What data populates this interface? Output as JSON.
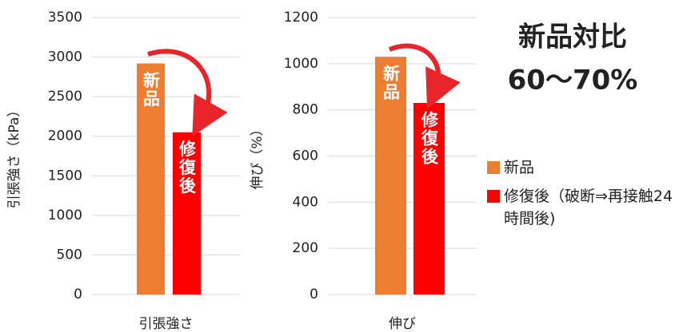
{
  "chart_data": [
    {
      "type": "bar",
      "y_label": "引張強さ（kPa）",
      "categories": [
        "引張強さ"
      ],
      "series": [
        {
          "name": "新品",
          "color": "#ed7d31",
          "values": [
            2920
          ]
        },
        {
          "name": "修復後（破断⇒再接触24時間後)",
          "color": "#ff0000",
          "values": [
            2050
          ]
        }
      ],
      "ylim": [
        0,
        3500
      ],
      "yticks": [
        0,
        500,
        1000,
        1500,
        2000,
        2500,
        3000,
        3500
      ],
      "grid": true,
      "bar_labels": [
        "新品",
        "修復後"
      ],
      "annotations": [
        "新品対比",
        "60〜70%"
      ]
    },
    {
      "type": "bar",
      "y_label": "伸び（%）",
      "categories": [
        "伸び"
      ],
      "series": [
        {
          "name": "新品",
          "color": "#ed7d31",
          "values": [
            1030
          ]
        },
        {
          "name": "修復後（破断⇒再接触24時間後)",
          "color": "#ff0000",
          "values": [
            830
          ]
        }
      ],
      "ylim": [
        0,
        1200
      ],
      "yticks": [
        0,
        200,
        400,
        600,
        800,
        1000,
        1200
      ],
      "grid": true,
      "bar_labels": [
        "新品",
        "修復後"
      ]
    }
  ]
}
